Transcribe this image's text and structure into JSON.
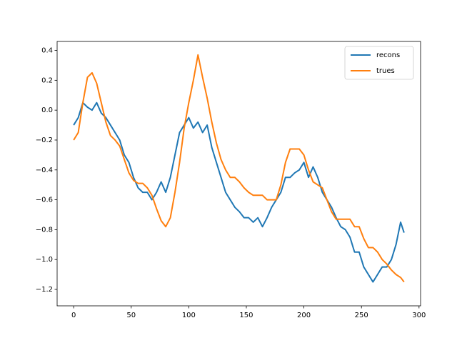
{
  "chart_data": {
    "type": "line",
    "x": [
      0,
      4,
      8,
      12,
      16,
      20,
      24,
      28,
      32,
      36,
      40,
      44,
      48,
      52,
      56,
      60,
      64,
      68,
      72,
      76,
      80,
      84,
      88,
      92,
      96,
      100,
      104,
      108,
      112,
      116,
      120,
      124,
      128,
      132,
      136,
      140,
      144,
      148,
      152,
      156,
      160,
      164,
      168,
      172,
      176,
      180,
      184,
      188,
      192,
      196,
      200,
      204,
      208,
      212,
      216,
      220,
      224,
      228,
      232,
      236,
      240,
      244,
      248,
      252,
      256,
      260,
      264,
      268,
      272,
      276,
      280,
      284,
      287
    ],
    "series": [
      {
        "name": "recons",
        "color": "#1f77b4",
        "values": [
          -0.1,
          -0.05,
          0.05,
          0.02,
          0.0,
          0.05,
          -0.02,
          -0.05,
          -0.1,
          -0.15,
          -0.2,
          -0.3,
          -0.35,
          -0.45,
          -0.52,
          -0.55,
          -0.55,
          -0.6,
          -0.55,
          -0.48,
          -0.55,
          -0.45,
          -0.3,
          -0.15,
          -0.1,
          -0.05,
          -0.12,
          -0.08,
          -0.15,
          -0.1,
          -0.25,
          -0.35,
          -0.45,
          -0.55,
          -0.6,
          -0.65,
          -0.68,
          -0.72,
          -0.72,
          -0.75,
          -0.72,
          -0.78,
          -0.72,
          -0.65,
          -0.6,
          -0.55,
          -0.45,
          -0.45,
          -0.42,
          -0.4,
          -0.35,
          -0.45,
          -0.38,
          -0.45,
          -0.55,
          -0.6,
          -0.65,
          -0.72,
          -0.78,
          -0.8,
          -0.85,
          -0.95,
          -0.95,
          -1.05,
          -1.1,
          -1.15,
          -1.1,
          -1.05,
          -1.05,
          -1.0,
          -0.9,
          -0.75,
          -0.82
        ]
      },
      {
        "name": "trues",
        "color": "#ff7f0e",
        "values": [
          -0.2,
          -0.15,
          0.05,
          0.22,
          0.25,
          0.18,
          0.05,
          -0.08,
          -0.17,
          -0.2,
          -0.24,
          -0.33,
          -0.42,
          -0.47,
          -0.49,
          -0.49,
          -0.52,
          -0.57,
          -0.66,
          -0.74,
          -0.78,
          -0.72,
          -0.55,
          -0.35,
          -0.12,
          0.05,
          0.2,
          0.37,
          0.22,
          0.08,
          -0.08,
          -0.22,
          -0.33,
          -0.4,
          -0.45,
          -0.45,
          -0.48,
          -0.52,
          -0.55,
          -0.57,
          -0.57,
          -0.57,
          -0.6,
          -0.6,
          -0.6,
          -0.5,
          -0.35,
          -0.26,
          -0.26,
          -0.26,
          -0.3,
          -0.4,
          -0.48,
          -0.5,
          -0.52,
          -0.6,
          -0.68,
          -0.73,
          -0.73,
          -0.73,
          -0.73,
          -0.78,
          -0.78,
          -0.86,
          -0.92,
          -0.92,
          -0.95,
          -1.0,
          -1.03,
          -1.07,
          -1.1,
          -1.12,
          -1.15
        ]
      }
    ],
    "xlim": [
      -14.35,
      301.35
    ],
    "xticks": [
      0,
      50,
      100,
      150,
      200,
      250,
      300
    ],
    "ylim": [
      -1.31,
      0.46
    ],
    "yticks": [
      {
        "value": -1.2,
        "label": "−1.2"
      },
      {
        "value": -1.0,
        "label": "−1.0"
      },
      {
        "value": -0.8,
        "label": "−0.8"
      },
      {
        "value": -0.6,
        "label": "−0.6"
      },
      {
        "value": -0.4,
        "label": "−0.4"
      },
      {
        "value": -0.2,
        "label": "−0.2"
      },
      {
        "value": 0.0,
        "label": "0.0"
      },
      0.2,
      0.4
    ],
    "legend": "upper right"
  }
}
